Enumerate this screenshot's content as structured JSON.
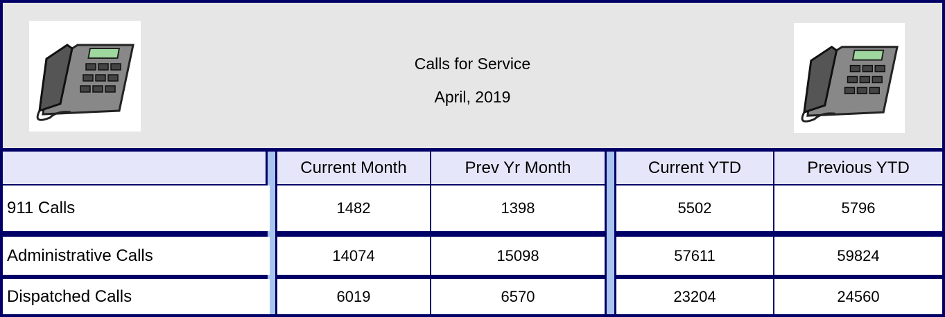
{
  "header": {
    "title": "Calls for Service",
    "subtitle": "April, 2019"
  },
  "table": {
    "columns": [
      "Current Month",
      "Prev Yr Month",
      "Current YTD",
      "Previous YTD"
    ],
    "rows": [
      {
        "label": "911 Calls",
        "values": [
          1482,
          1398,
          5502,
          5796
        ]
      },
      {
        "label": "Administrative Calls",
        "values": [
          14074,
          15098,
          57611,
          59824
        ]
      },
      {
        "label": "Dispatched Calls",
        "values": [
          6019,
          6570,
          23204,
          24560
        ]
      }
    ]
  }
}
